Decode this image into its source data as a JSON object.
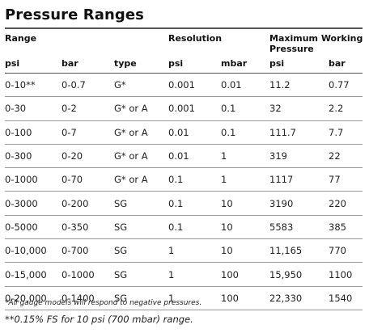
{
  "title": "Pressure Ranges",
  "headers": {
    "range": "Range",
    "resolution": "Resolution",
    "max_working_line1": "Maximum Working",
    "max_working_line2": "Pressure"
  },
  "units": [
    "psi",
    "bar",
    "type",
    "psi",
    "mbar",
    "psi",
    "bar"
  ],
  "rows": [
    [
      "0-10**",
      "0-0.7",
      "G*",
      "0.001",
      "0.01",
      "11.2",
      "0.77"
    ],
    [
      "0-30",
      "0-2",
      "G* or A",
      "0.001",
      "0.1",
      "32",
      "2.2"
    ],
    [
      "0-100",
      "0-7",
      "G* or A",
      "0.01",
      "0.1",
      "111.7",
      "7.7"
    ],
    [
      "0-300",
      "0-20",
      "G* or A",
      "0.01",
      "1",
      "319",
      "22"
    ],
    [
      "0-1000",
      "0-70",
      "G* or A",
      "0.1",
      "1",
      "1117",
      "77"
    ],
    [
      "0-3000",
      "0-200",
      "SG",
      "0.1",
      "10",
      "3190",
      "220"
    ],
    [
      "0-5000",
      "0-350",
      "SG",
      "0.1",
      "10",
      "5583",
      "385"
    ],
    [
      "0-10,000",
      "0-700",
      "SG",
      "1",
      "10",
      "11,165",
      "770"
    ],
    [
      "0-15,000",
      "0-1000",
      "SG",
      "1",
      "100",
      "15,950",
      "1100"
    ],
    [
      "0-20,000",
      "0-1400",
      "SG",
      "1",
      "100",
      "22,330",
      "1540"
    ]
  ],
  "footnotes": [
    "*All gauge models will respond to negative pressures.",
    "**0.15% FS for 10 psi (700 mbar) range."
  ]
}
